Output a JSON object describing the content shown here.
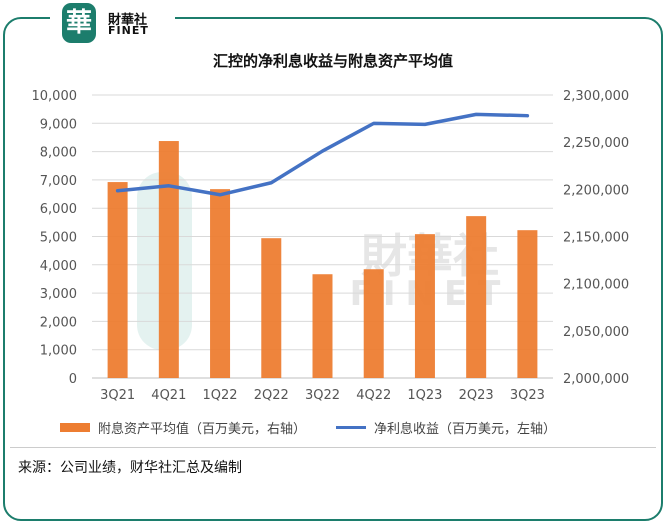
{
  "logo": {
    "cn": "財華社",
    "en": "FINET",
    "seal": "華"
  },
  "chart_data": {
    "type": "bar+line",
    "title": "汇控的净利息收益与附息资产平均值",
    "categories": [
      "3Q21",
      "4Q21",
      "1Q22",
      "2Q22",
      "3Q22",
      "4Q22",
      "1Q23",
      "2Q23",
      "3Q23"
    ],
    "series": [
      {
        "name": "附息资产平均值（百万美元，右轴）",
        "type": "bar",
        "axis": "right",
        "color": "#ed7d31",
        "values": [
          2207700,
          2251200,
          2200200,
          2148200,
          2110000,
          2115300,
          2152500,
          2171600,
          2156700
        ]
      },
      {
        "name": "净利息收益（百万美元，左轴）",
        "type": "line",
        "axis": "left",
        "color": "#4472c4",
        "values": [
          6616,
          6792,
          6474,
          6899,
          8019,
          8998,
          8962,
          9316,
          9269
        ]
      }
    ],
    "left_axis": {
      "ylim": [
        0,
        10000
      ],
      "ticks": [
        "0",
        "1,000",
        "2,000",
        "3,000",
        "4,000",
        "5,000",
        "6,000",
        "7,000",
        "8,000",
        "9,000",
        "10,000"
      ]
    },
    "right_axis": {
      "ylim": [
        2000000,
        2300000
      ],
      "ticks": [
        "2,000,000",
        "2,050,000",
        "2,100,000",
        "2,150,000",
        "2,200,000",
        "2,250,000",
        "2,300,000"
      ]
    },
    "grid": true,
    "legend": "bottom"
  },
  "source": "来源：公司业绩，财华社汇总及编制"
}
